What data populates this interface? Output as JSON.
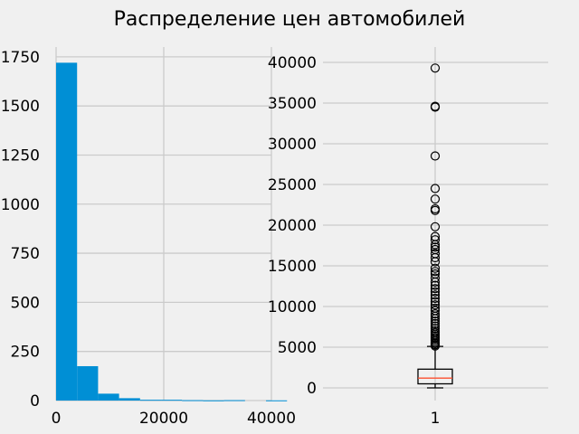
{
  "title": "Распределение цен автомобилей",
  "chart_data": [
    {
      "type": "bar",
      "subtype": "histogram",
      "bins": [
        {
          "x0": 0,
          "x1": 3900,
          "count": 1720
        },
        {
          "x0": 3900,
          "x1": 7800,
          "count": 175
        },
        {
          "x0": 7800,
          "x1": 11700,
          "count": 35
        },
        {
          "x0": 11700,
          "x1": 15600,
          "count": 12
        },
        {
          "x0": 15600,
          "x1": 19500,
          "count": 4
        },
        {
          "x0": 19500,
          "x1": 23400,
          "count": 4
        },
        {
          "x0": 23400,
          "x1": 27300,
          "count": 2
        },
        {
          "x0": 27300,
          "x1": 31200,
          "count": 1
        },
        {
          "x0": 31200,
          "x1": 35100,
          "count": 2
        },
        {
          "x0": 35100,
          "x1": 39000,
          "count": 0
        },
        {
          "x0": 39000,
          "x1": 42900,
          "count": 1
        }
      ],
      "bar_color": "#008fd5",
      "xlim": [
        0,
        40000
      ],
      "ylim": [
        0,
        1800
      ],
      "xticks": [
        0,
        20000,
        40000
      ],
      "yticks": [
        0,
        250,
        500,
        750,
        1000,
        1250,
        1500,
        1750
      ],
      "grid": true
    },
    {
      "type": "box",
      "categories": [
        "1"
      ],
      "ylim": [
        0,
        40000
      ],
      "yticks": [
        0,
        5000,
        10000,
        15000,
        20000,
        25000,
        30000,
        35000,
        40000
      ],
      "box": {
        "whisker_low": 0,
        "q1": 500,
        "median": 1200,
        "q3": 2300,
        "whisker_high": 5100
      },
      "outliers": [
        5150,
        5300,
        5450,
        5600,
        5800,
        6000,
        6200,
        6400,
        6600,
        6800,
        7000,
        7300,
        7600,
        7900,
        8200,
        8500,
        8800,
        9100,
        9500,
        9800,
        10200,
        10600,
        11000,
        11400,
        11800,
        12200,
        12600,
        13000,
        13500,
        14000,
        14300,
        14700,
        15500,
        16000,
        16500,
        17000,
        17300,
        17600,
        18200,
        18600,
        19800,
        21800,
        22000,
        23200,
        24500,
        28500,
        34500,
        34600,
        39300
      ],
      "median_color": "#fc4f30",
      "grid": true
    }
  ]
}
